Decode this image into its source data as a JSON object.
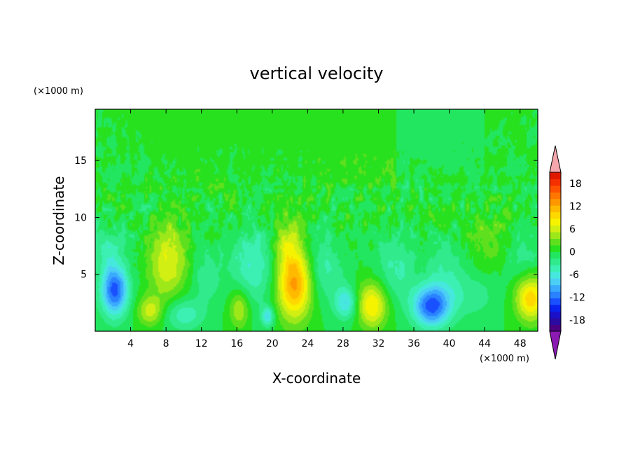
{
  "chart_data": {
    "type": "heatmap",
    "title": "vertical velocity",
    "xlabel": "X-coordinate",
    "ylabel": "Z-coordinate",
    "x_units": "(×1000 m)",
    "y_units": "(×1000 m)",
    "xlim": [
      0,
      50
    ],
    "ylim": [
      0,
      19.5
    ],
    "xticks": [
      4,
      8,
      12,
      16,
      20,
      24,
      28,
      32,
      36,
      40,
      44,
      48
    ],
    "xtick_labels": [
      "4",
      "8",
      "12",
      "16",
      "20",
      "24",
      "28",
      "32",
      "36",
      "40",
      "44",
      "48"
    ],
    "yticks": [
      5,
      10,
      15
    ],
    "ytick_labels": [
      "5",
      "10",
      "15"
    ],
    "colorbar": {
      "levels": [
        -21,
        -19.5,
        -18,
        -16.5,
        -15,
        -13.5,
        -12,
        -10.5,
        -9,
        -7.5,
        -6,
        -4.5,
        -3,
        -1.5,
        0,
        1.5,
        3,
        4.5,
        6,
        7.5,
        9,
        10.5,
        12,
        13.5,
        15,
        16.5,
        18,
        19.5,
        21
      ],
      "tick_values": [
        -18,
        -12,
        -6,
        0,
        6,
        12,
        18
      ],
      "tick_labels": [
        "-18",
        "-12",
        "-6",
        "0",
        "6",
        "12",
        "18"
      ],
      "colors": [
        "#4b0082",
        "#2a0aa0",
        "#1a10c8",
        "#0a22ee",
        "#1950ff",
        "#2a82ff",
        "#3aaaff",
        "#4ccff5",
        "#46e8de",
        "#3cf0b4",
        "#30ea8c",
        "#22e660",
        "#28e11e",
        "#5fe01e",
        "#9ee81a",
        "#d2ef14",
        "#f6f300",
        "#ffd800",
        "#ffba00",
        "#ff9800",
        "#ff7600",
        "#ff5200",
        "#f42f00",
        "#e01800"
      ],
      "under_color": "#8b1ab3",
      "over_color": "#f4a6ac",
      "extend": "both"
    },
    "features": [
      {
        "x": 2.2,
        "z": 3.6,
        "sx": 1.1,
        "sz": 1.6,
        "w": -13
      },
      {
        "x": 1.4,
        "z": 7.2,
        "sx": 1.2,
        "sz": 1.3,
        "w": -4
      },
      {
        "x": 8.2,
        "z": 6.2,
        "sx": 1.5,
        "sz": 2.4,
        "w": 7
      },
      {
        "x": 6.2,
        "z": 1.8,
        "sx": 1.0,
        "sz": 0.9,
        "w": 6
      },
      {
        "x": 10.0,
        "z": 1.5,
        "sx": 1.6,
        "sz": 1.0,
        "w": -5
      },
      {
        "x": 12.6,
        "z": 4.8,
        "sx": 1.1,
        "sz": 1.6,
        "w": -3
      },
      {
        "x": 16.3,
        "z": 2.0,
        "sx": 0.8,
        "sz": 1.2,
        "w": 6
      },
      {
        "x": 17.8,
        "z": 5.8,
        "sx": 1.8,
        "sz": 2.5,
        "w": -5
      },
      {
        "x": 19.5,
        "z": 1.3,
        "sx": 0.5,
        "sz": 0.6,
        "w": -7
      },
      {
        "x": 22.5,
        "z": 4.2,
        "sx": 1.4,
        "sz": 2.2,
        "w": 13
      },
      {
        "x": 21.6,
        "z": 8.0,
        "sx": 1.2,
        "sz": 1.5,
        "w": 4
      },
      {
        "x": 25.8,
        "z": 5.5,
        "sx": 1.5,
        "sz": 2.0,
        "w": -4
      },
      {
        "x": 28.3,
        "z": 2.5,
        "sx": 0.9,
        "sz": 1.0,
        "w": -7
      },
      {
        "x": 31.3,
        "z": 2.3,
        "sx": 1.2,
        "sz": 1.4,
        "w": 9
      },
      {
        "x": 34.0,
        "z": 5.5,
        "sx": 1.5,
        "sz": 2.0,
        "w": -4
      },
      {
        "x": 38.0,
        "z": 2.2,
        "sx": 1.5,
        "sz": 1.3,
        "w": -13
      },
      {
        "x": 39.5,
        "z": 5.6,
        "sx": 1.4,
        "sz": 2.0,
        "w": -3
      },
      {
        "x": 42.5,
        "z": 3.3,
        "sx": 2.1,
        "sz": 1.5,
        "w": -3
      },
      {
        "x": 44.5,
        "z": 8.0,
        "sx": 2.0,
        "sz": 2.2,
        "w": 2.5
      },
      {
        "x": 49.2,
        "z": 2.9,
        "sx": 1.2,
        "sz": 1.4,
        "w": 10
      },
      {
        "x": 48.0,
        "z": 6.5,
        "sx": 1.5,
        "sz": 1.5,
        "w": -3
      }
    ]
  }
}
